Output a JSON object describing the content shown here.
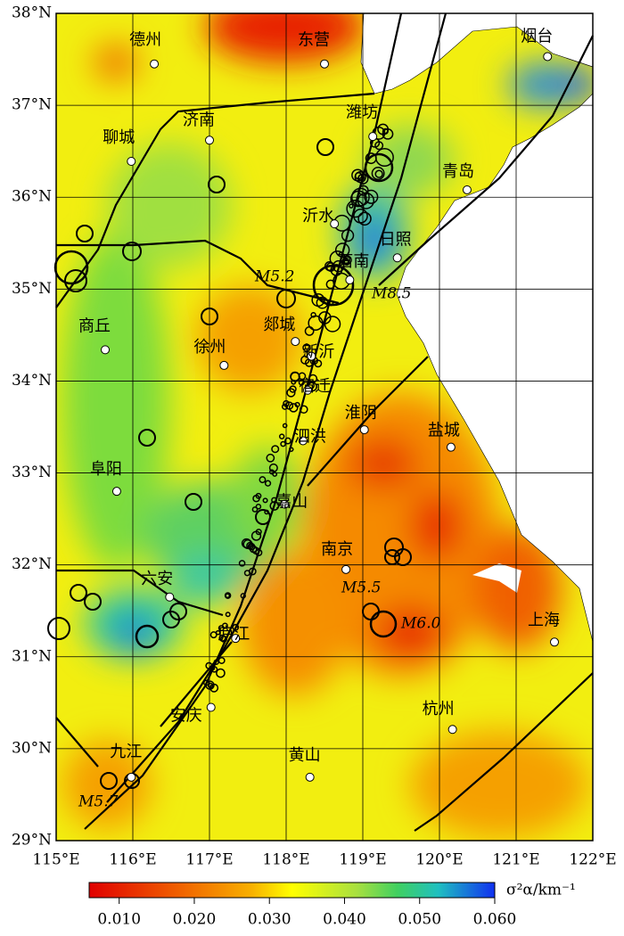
{
  "map": {
    "xlim": [
      115,
      122
    ],
    "ylim": [
      29,
      38
    ],
    "xticks": [
      {
        "value": 115,
        "label": "115°E"
      },
      {
        "value": 116,
        "label": "116°E"
      },
      {
        "value": 117,
        "label": "117°E"
      },
      {
        "value": 118,
        "label": "118°E"
      },
      {
        "value": 119,
        "label": "119°E"
      },
      {
        "value": 120,
        "label": "120°E"
      },
      {
        "value": 121,
        "label": "121°E"
      },
      {
        "value": 122,
        "label": "122°E"
      }
    ],
    "yticks": [
      {
        "value": 29,
        "label": "29°N"
      },
      {
        "value": 30,
        "label": "30°N"
      },
      {
        "value": 31,
        "label": "31°N"
      },
      {
        "value": 32,
        "label": "32°N"
      },
      {
        "value": 33,
        "label": "33°N"
      },
      {
        "value": 34,
        "label": "34°N"
      },
      {
        "value": 35,
        "label": "35°N"
      },
      {
        "value": 36,
        "label": "36°N"
      },
      {
        "value": 37,
        "label": "37°N"
      },
      {
        "value": 38,
        "label": "38°N"
      }
    ],
    "cities": [
      {
        "name": "德州",
        "lon": 116.28,
        "lat": 37.45
      },
      {
        "name": "东营",
        "lon": 118.5,
        "lat": 37.45
      },
      {
        "name": "烟台",
        "lon": 121.41,
        "lat": 37.53
      },
      {
        "name": "济南",
        "lon": 117.0,
        "lat": 36.62
      },
      {
        "name": "聊城",
        "lon": 115.98,
        "lat": 36.39
      },
      {
        "name": "潍坊",
        "lon": 119.13,
        "lat": 36.66
      },
      {
        "name": "青岛",
        "lon": 120.36,
        "lat": 36.08
      },
      {
        "name": "沂水",
        "lon": 118.63,
        "lat": 35.71
      },
      {
        "name": "日照",
        "lon": 119.45,
        "lat": 35.34
      },
      {
        "name": "莒南",
        "lon": 118.83,
        "lat": 35.1
      },
      {
        "name": "郯城",
        "lon": 118.12,
        "lat": 34.43
      },
      {
        "name": "商丘",
        "lon": 115.64,
        "lat": 34.34
      },
      {
        "name": "徐州",
        "lon": 117.19,
        "lat": 34.17
      },
      {
        "name": "新沂",
        "lon": 118.33,
        "lat": 34.27
      },
      {
        "name": "宿迁",
        "lon": 118.28,
        "lat": 33.9
      },
      {
        "name": "淮阴",
        "lon": 119.02,
        "lat": 33.47
      },
      {
        "name": "盐城",
        "lon": 120.15,
        "lat": 33.28
      },
      {
        "name": "泗洪",
        "lon": 118.22,
        "lat": 33.35
      },
      {
        "name": "阜阳",
        "lon": 115.79,
        "lat": 32.8
      },
      {
        "name": "嘉山",
        "lon": 117.98,
        "lat": 32.66
      },
      {
        "name": "南京",
        "lon": 118.78,
        "lat": 31.95
      },
      {
        "name": "六安",
        "lon": 116.48,
        "lat": 31.65
      },
      {
        "name": "庐江",
        "lon": 117.34,
        "lat": 31.2
      },
      {
        "name": "上海",
        "lon": 121.5,
        "lat": 31.16
      },
      {
        "name": "安庆",
        "lon": 117.02,
        "lat": 30.45
      },
      {
        "name": "杭州",
        "lon": 120.17,
        "lat": 30.21
      },
      {
        "name": "黄山",
        "lon": 118.31,
        "lat": 29.69
      },
      {
        "name": "九江",
        "lon": 115.98,
        "lat": 29.69
      }
    ],
    "annotations": [
      "M5.2",
      "M8.5",
      "M5.5",
      "M6.0",
      "M5.7"
    ],
    "colorbar": {
      "label": "σ²α/km⁻¹",
      "lim": [
        0.006,
        0.06
      ],
      "ticks": [
        {
          "value": 0.01,
          "label": "0.010"
        },
        {
          "value": 0.02,
          "label": "0.020"
        },
        {
          "value": 0.03,
          "label": "0.030"
        },
        {
          "value": 0.04,
          "label": "0.040"
        },
        {
          "value": 0.05,
          "label": "0.050"
        },
        {
          "value": 0.06,
          "label": "0.060"
        }
      ]
    }
  }
}
